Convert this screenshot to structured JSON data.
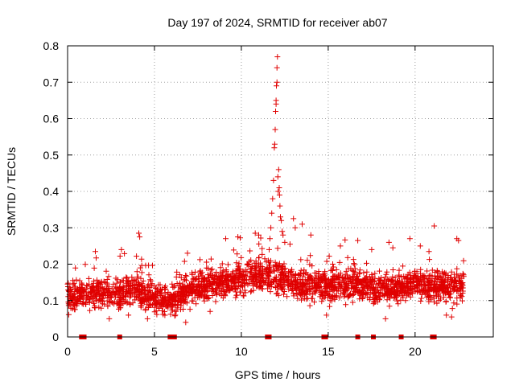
{
  "chart_data": {
    "type": "scatter",
    "title": "Day 197 of 2024, SRMTID for receiver ab07",
    "xlabel": "GPS time / hours",
    "ylabel": "SRMTID / TECUs",
    "xlim": [
      0,
      24.5
    ],
    "ylim": [
      0,
      0.8
    ],
    "x_ticks": [
      0,
      5,
      10,
      15,
      20
    ],
    "y_ticks": [
      0,
      0.1,
      0.2,
      0.3,
      0.4,
      0.5,
      0.6,
      0.7,
      0.8
    ],
    "x_tick_labels": [
      "0",
      "5",
      "10",
      "15",
      "20"
    ],
    "y_tick_labels": [
      "0",
      "0.1",
      "0.2",
      "0.3",
      "0.4",
      "0.5",
      "0.6",
      "0.7",
      "0.8"
    ],
    "grid": true,
    "marker": "+",
    "color": "#e00000",
    "x_range_data": [
      0,
      22.8
    ],
    "baseline_trend": [
      [
        0.0,
        0.11
      ],
      [
        1.0,
        0.12
      ],
      [
        2.0,
        0.12
      ],
      [
        3.0,
        0.12
      ],
      [
        4.0,
        0.13
      ],
      [
        5.0,
        0.1
      ],
      [
        6.0,
        0.1
      ],
      [
        7.0,
        0.13
      ],
      [
        8.0,
        0.14
      ],
      [
        9.0,
        0.15
      ],
      [
        10.0,
        0.16
      ],
      [
        11.0,
        0.17
      ],
      [
        12.0,
        0.16
      ],
      [
        13.0,
        0.15
      ],
      [
        14.0,
        0.14
      ],
      [
        15.0,
        0.14
      ],
      [
        16.0,
        0.14
      ],
      [
        17.0,
        0.14
      ],
      [
        18.0,
        0.13
      ],
      [
        19.0,
        0.13
      ],
      [
        20.0,
        0.15
      ],
      [
        21.0,
        0.14
      ],
      [
        22.0,
        0.14
      ],
      [
        22.8,
        0.14
      ]
    ],
    "spike_points": [
      [
        11.55,
        0.21
      ],
      [
        11.6,
        0.24
      ],
      [
        11.65,
        0.27
      ],
      [
        11.7,
        0.3
      ],
      [
        11.75,
        0.34
      ],
      [
        11.8,
        0.38
      ],
      [
        11.85,
        0.43
      ],
      [
        11.9,
        0.52
      ],
      [
        11.92,
        0.53
      ],
      [
        11.95,
        0.57
      ],
      [
        11.97,
        0.62
      ],
      [
        12.0,
        0.64
      ],
      [
        12.0,
        0.65
      ],
      [
        12.02,
        0.69
      ],
      [
        12.05,
        0.7
      ],
      [
        12.05,
        0.74
      ],
      [
        12.08,
        0.77
      ],
      [
        12.1,
        0.44
      ],
      [
        12.12,
        0.4
      ],
      [
        12.15,
        0.46
      ],
      [
        12.18,
        0.41
      ],
      [
        12.2,
        0.39
      ],
      [
        12.22,
        0.36
      ],
      [
        12.25,
        0.33
      ],
      [
        12.3,
        0.32
      ],
      [
        12.35,
        0.29
      ],
      [
        12.4,
        0.28
      ],
      [
        12.5,
        0.26
      ],
      [
        11.5,
        0.19
      ],
      [
        11.45,
        0.18
      ]
    ],
    "outliers": [
      [
        4.1,
        0.285
      ],
      [
        4.15,
        0.275
      ],
      [
        3.1,
        0.24
      ],
      [
        1.6,
        0.235
      ],
      [
        11.0,
        0.28
      ],
      [
        13.0,
        0.325
      ],
      [
        13.1,
        0.3
      ],
      [
        13.5,
        0.31
      ],
      [
        14.0,
        0.28
      ],
      [
        21.1,
        0.305
      ],
      [
        22.4,
        0.27
      ],
      [
        22.5,
        0.265
      ],
      [
        9.1,
        0.27
      ],
      [
        9.8,
        0.275
      ],
      [
        16.7,
        0.265
      ],
      [
        18.5,
        0.26
      ],
      [
        19.7,
        0.27
      ],
      [
        20.3,
        0.25
      ],
      [
        0.3,
        0.155
      ],
      [
        6.9,
        0.23
      ],
      [
        10.8,
        0.285
      ],
      [
        12.8,
        0.255
      ],
      [
        15.7,
        0.25
      ],
      [
        17.5,
        0.24
      ],
      [
        20.8,
        0.235
      ],
      [
        6.2,
        0.06
      ],
      [
        6.8,
        0.04
      ],
      [
        4.6,
        0.05
      ],
      [
        2.4,
        0.05
      ],
      [
        14.9,
        0.06
      ],
      [
        18.3,
        0.05
      ],
      [
        21.8,
        0.06
      ],
      [
        22.1,
        0.055
      ],
      [
        3.5,
        0.06
      ],
      [
        8.2,
        0.07
      ]
    ],
    "zero_markers_x": [
      0.8,
      0.95,
      3.0,
      5.9,
      6.05,
      6.15,
      11.5,
      11.6,
      14.75,
      14.85,
      16.7,
      17.6,
      19.2,
      21.0,
      21.1
    ]
  }
}
